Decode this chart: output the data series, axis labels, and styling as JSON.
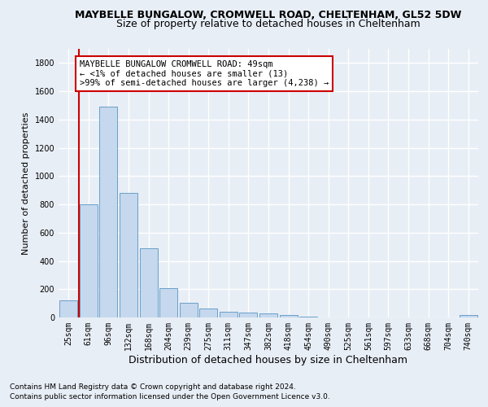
{
  "title1": "MAYBELLE BUNGALOW, CROMWELL ROAD, CHELTENHAM, GL52 5DW",
  "title2": "Size of property relative to detached houses in Cheltenham",
  "xlabel": "Distribution of detached houses by size in Cheltenham",
  "ylabel": "Number of detached properties",
  "bar_color": "#c5d8ee",
  "bar_edge_color": "#6a9fc8",
  "categories": [
    "25sqm",
    "61sqm",
    "96sqm",
    "132sqm",
    "168sqm",
    "204sqm",
    "239sqm",
    "275sqm",
    "311sqm",
    "347sqm",
    "382sqm",
    "418sqm",
    "454sqm",
    "490sqm",
    "525sqm",
    "561sqm",
    "597sqm",
    "633sqm",
    "668sqm",
    "704sqm",
    "740sqm"
  ],
  "values": [
    120,
    800,
    1490,
    880,
    490,
    205,
    105,
    65,
    40,
    35,
    30,
    20,
    5,
    0,
    0,
    0,
    0,
    0,
    0,
    0,
    20
  ],
  "vline_color": "#cc0000",
  "annotation_text": "MAYBELLE BUNGALOW CROMWELL ROAD: 49sqm\n← <1% of detached houses are smaller (13)\n>99% of semi-detached houses are larger (4,238) →",
  "annotation_box_color": "#ffffff",
  "annotation_box_edge": "#cc0000",
  "footer1": "Contains HM Land Registry data © Crown copyright and database right 2024.",
  "footer2": "Contains public sector information licensed under the Open Government Licence v3.0.",
  "ylim": [
    0,
    1900
  ],
  "yticks": [
    0,
    200,
    400,
    600,
    800,
    1000,
    1200,
    1400,
    1600,
    1800
  ],
  "background_color": "#e8eef6",
  "grid_color": "#ffffff",
  "title1_fontsize": 9,
  "title2_fontsize": 9,
  "ylabel_fontsize": 8,
  "xlabel_fontsize": 9,
  "tick_fontsize": 7,
  "footer_fontsize": 6.5,
  "ann_fontsize": 7.5
}
